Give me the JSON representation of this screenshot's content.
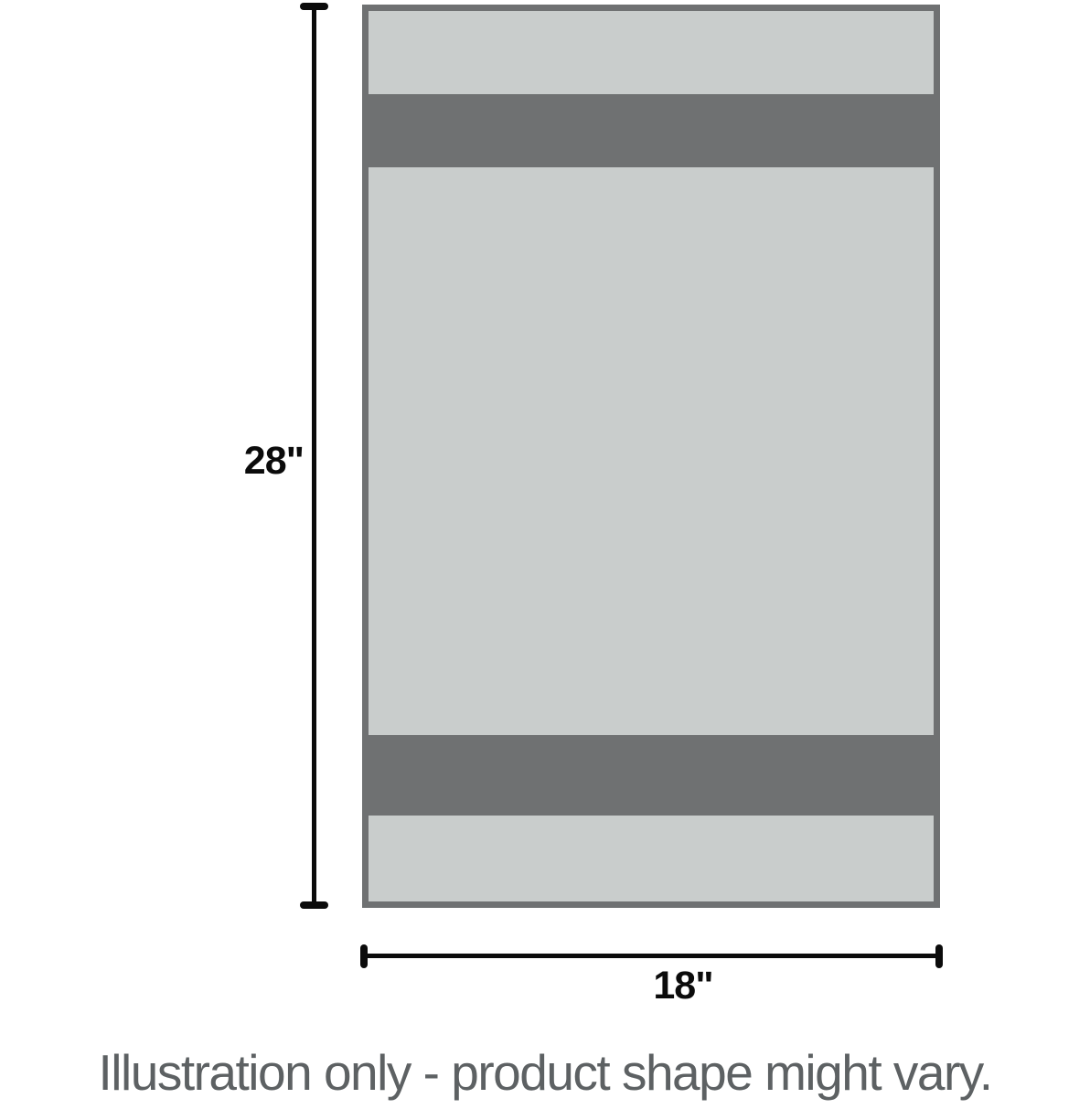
{
  "illustration": {
    "height_label": "28\"",
    "width_label": "18\"",
    "caption": "Illustration only - product shape might vary."
  },
  "colors": {
    "product_fill": "#c9cdcc",
    "product_stripe": "#6f7172",
    "dimension_line": "#0b0b0b",
    "caption_text": "#5d6163"
  }
}
